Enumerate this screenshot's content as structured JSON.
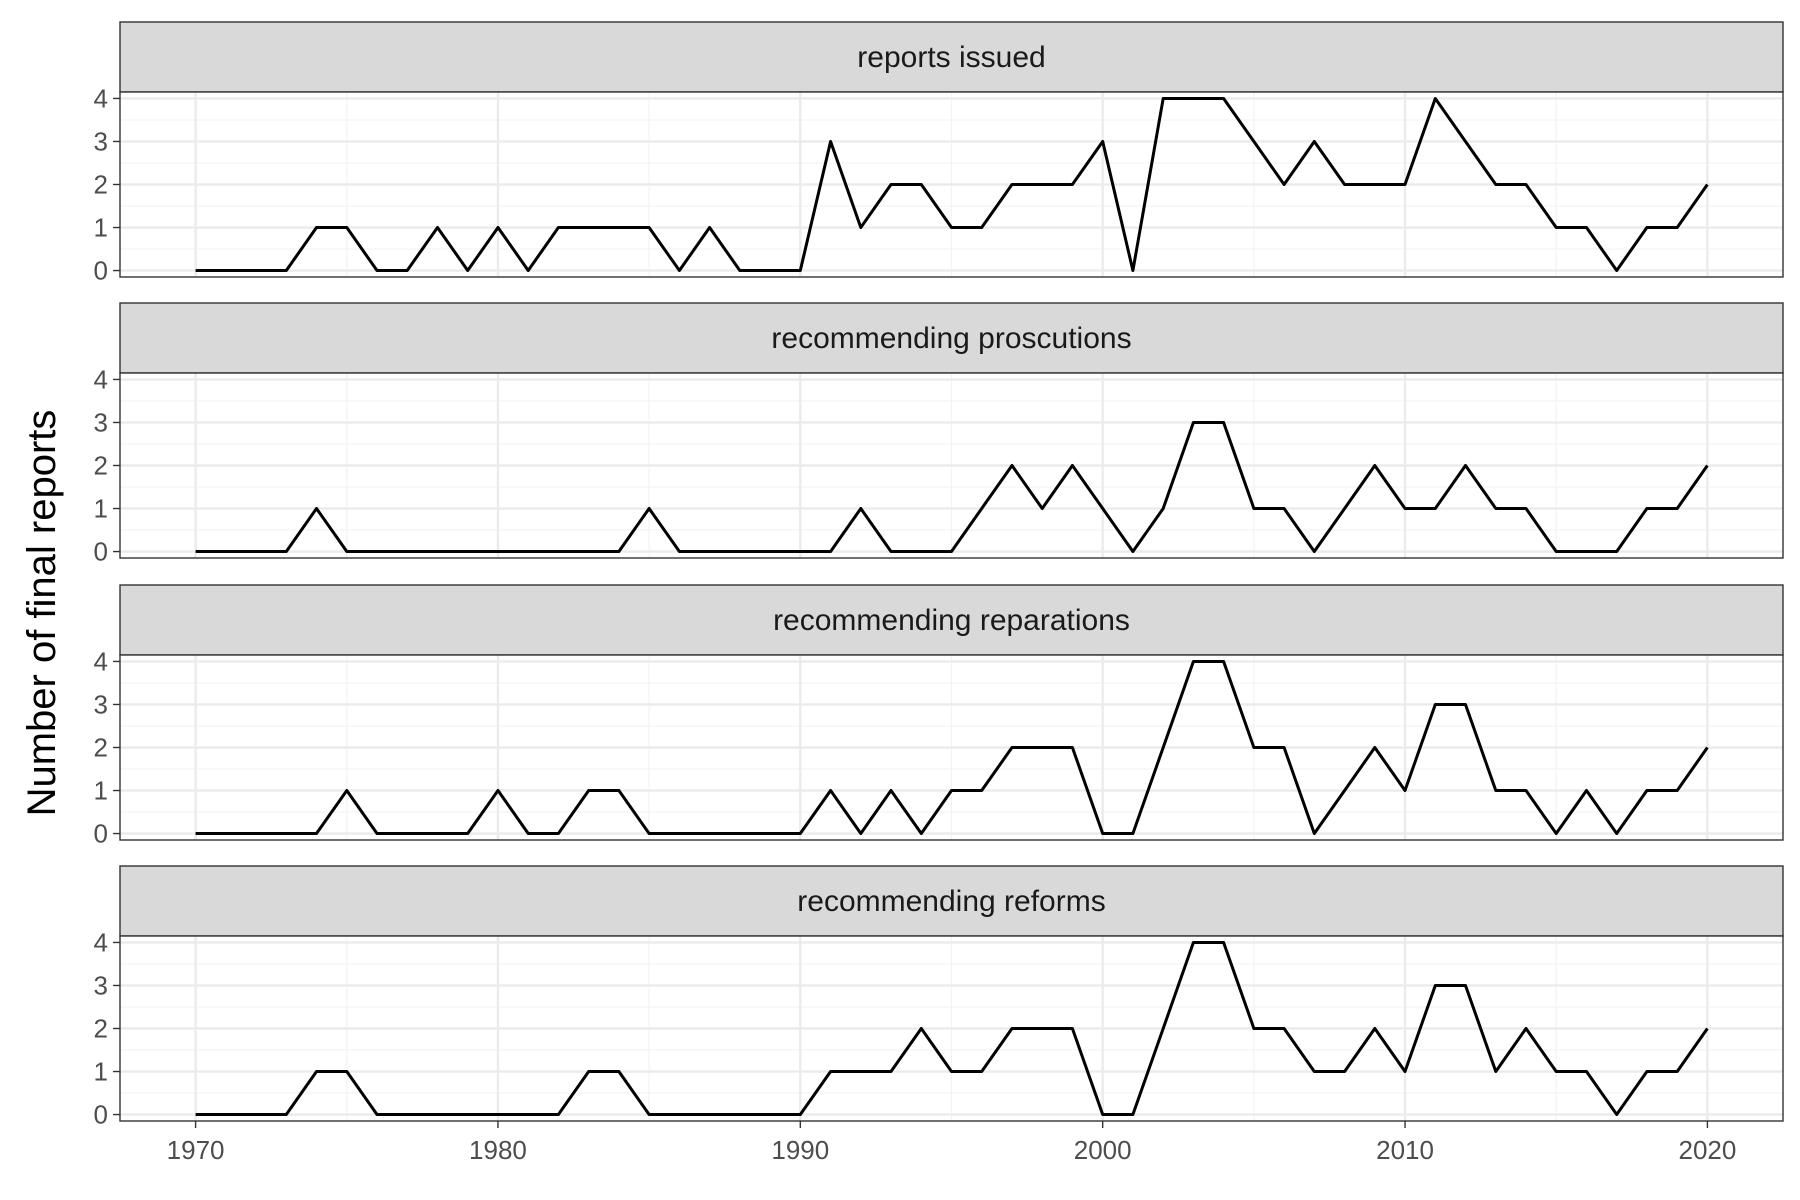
{
  "chart_data": {
    "type": "line",
    "ylabel": "Number of final reports",
    "xlabel": "",
    "xlim": [
      1970,
      2020
    ],
    "ylim": [
      0,
      4
    ],
    "x_ticks": [
      1970,
      1980,
      1990,
      2000,
      2010,
      2020
    ],
    "y_ticks": [
      0,
      1,
      2,
      3,
      4
    ],
    "grid": true,
    "x": [
      1970,
      1971,
      1972,
      1973,
      1974,
      1975,
      1976,
      1977,
      1978,
      1979,
      1980,
      1981,
      1982,
      1983,
      1984,
      1985,
      1986,
      1987,
      1988,
      1989,
      1990,
      1991,
      1992,
      1993,
      1994,
      1995,
      1996,
      1997,
      1998,
      1999,
      2000,
      2001,
      2002,
      2003,
      2004,
      2005,
      2006,
      2007,
      2008,
      2009,
      2010,
      2011,
      2012,
      2013,
      2014,
      2015,
      2016,
      2017,
      2018,
      2019,
      2020
    ],
    "panels": [
      {
        "title": "reports issued",
        "values": [
          0,
          0,
          0,
          0,
          1,
          1,
          0,
          0,
          1,
          0,
          1,
          0,
          1,
          1,
          1,
          1,
          0,
          1,
          0,
          0,
          0,
          3,
          1,
          2,
          2,
          1,
          1,
          2,
          2,
          2,
          3,
          0,
          4,
          4,
          4,
          3,
          2,
          3,
          2,
          2,
          2,
          4,
          3,
          2,
          2,
          1,
          1,
          0,
          1,
          1,
          2
        ]
      },
      {
        "title": "recommending proscutions",
        "values": [
          0,
          0,
          0,
          0,
          1,
          0,
          0,
          0,
          0,
          0,
          0,
          0,
          0,
          0,
          0,
          1,
          0,
          0,
          0,
          0,
          0,
          0,
          1,
          0,
          0,
          0,
          1,
          2,
          1,
          2,
          1,
          0,
          1,
          3,
          3,
          1,
          1,
          0,
          1,
          2,
          1,
          1,
          2,
          1,
          1,
          0,
          0,
          0,
          1,
          1,
          2
        ]
      },
      {
        "title": "recommending reparations",
        "values": [
          0,
          0,
          0,
          0,
          0,
          1,
          0,
          0,
          0,
          0,
          1,
          0,
          0,
          1,
          1,
          0,
          0,
          0,
          0,
          0,
          0,
          1,
          0,
          1,
          0,
          1,
          1,
          2,
          2,
          2,
          0,
          0,
          2,
          4,
          4,
          2,
          2,
          0,
          1,
          2,
          1,
          3,
          3,
          1,
          1,
          0,
          1,
          0,
          1,
          1,
          2
        ]
      },
      {
        "title": "recommending reforms",
        "values": [
          0,
          0,
          0,
          0,
          1,
          1,
          0,
          0,
          0,
          0,
          0,
          0,
          0,
          1,
          1,
          0,
          0,
          0,
          0,
          0,
          0,
          1,
          1,
          1,
          2,
          1,
          1,
          2,
          2,
          2,
          0,
          0,
          2,
          4,
          4,
          2,
          2,
          1,
          1,
          2,
          1,
          3,
          3,
          1,
          2,
          1,
          1,
          0,
          1,
          1,
          2
        ]
      }
    ]
  }
}
